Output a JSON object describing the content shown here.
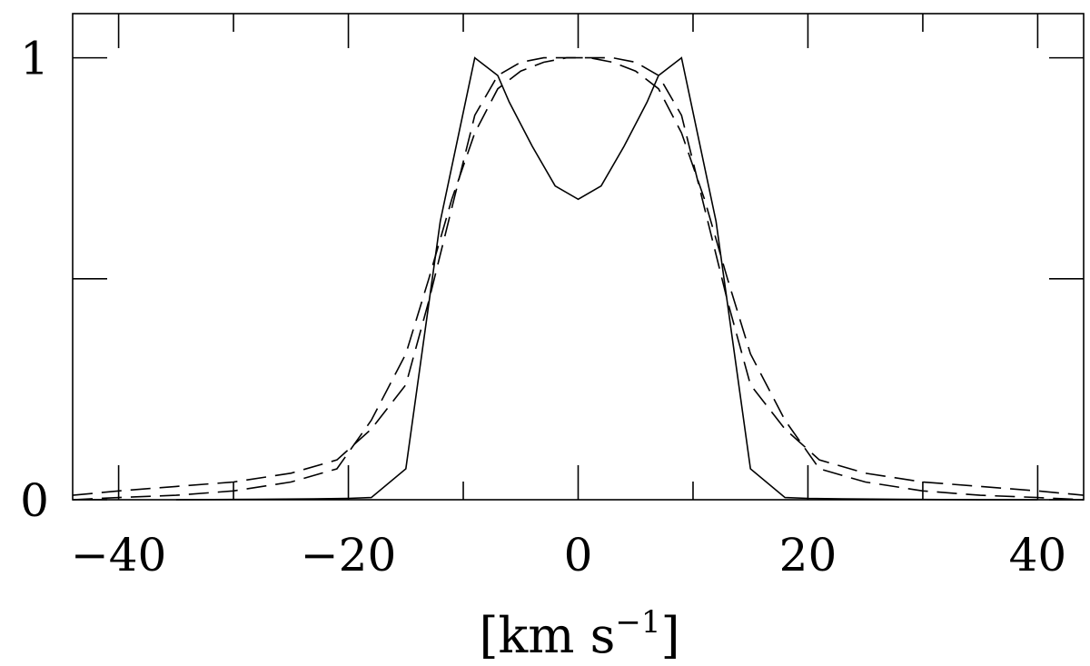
{
  "chart_data": {
    "type": "line",
    "title": "",
    "xlabel": "[km s",
    "xlabel_superscript": "−1",
    "xlabel_close": "]",
    "ylabel": "",
    "xlim": [
      -44,
      44
    ],
    "ylim": [
      0,
      1.1
    ],
    "x_ticks": [
      -40,
      -20,
      0,
      20,
      40
    ],
    "x_tick_labels": [
      "−40",
      "−20",
      "0",
      "20",
      "40"
    ],
    "x_minor_ticks": [
      -30,
      -10,
      10,
      30
    ],
    "y_ticks": [
      0,
      0.5,
      1
    ],
    "y_tick_labels": [
      "0",
      "",
      "1"
    ],
    "grid": false,
    "legend": "none",
    "series": [
      {
        "style": "solid",
        "x": [
          -35,
          -28,
          -23,
          -20,
          -18,
          -15,
          -12,
          -9,
          -7,
          -6,
          -4,
          -2,
          0,
          2,
          4,
          6,
          7,
          9,
          12,
          15,
          18,
          20,
          23,
          28,
          35,
          40
        ],
        "y": [
          0.0,
          0.001,
          0.002,
          0.003,
          0.005,
          0.07,
          0.63,
          1.0,
          0.96,
          0.9,
          0.8,
          0.71,
          0.68,
          0.71,
          0.8,
          0.9,
          0.96,
          1.0,
          0.63,
          0.07,
          0.005,
          0.003,
          0.002,
          0.001,
          0.0,
          0.0
        ]
      },
      {
        "style": "dash",
        "x": [
          -44,
          -40,
          -35,
          -30,
          -25,
          -21,
          -18,
          -15,
          -13,
          -11,
          -9,
          -7,
          -5,
          -3,
          -1,
          0,
          1,
          3,
          5,
          7,
          9,
          11,
          13,
          15,
          18,
          21,
          25,
          30,
          35,
          40,
          44
        ],
        "y": [
          0.01,
          0.02,
          0.03,
          0.04,
          0.06,
          0.09,
          0.16,
          0.26,
          0.45,
          0.66,
          0.87,
          0.96,
          0.99,
          1.0,
          1.0,
          1.0,
          1.0,
          1.0,
          0.99,
          0.96,
          0.87,
          0.66,
          0.45,
          0.26,
          0.16,
          0.09,
          0.06,
          0.04,
          0.03,
          0.02,
          0.01
        ]
      },
      {
        "style": "dash",
        "x": [
          -44,
          -40,
          -35,
          -30,
          -25,
          -21,
          -18,
          -15,
          -13,
          -11,
          -9,
          -7,
          -5,
          -3,
          -1,
          0,
          1,
          3,
          5,
          7,
          9,
          11,
          13,
          15,
          18,
          21,
          25,
          30,
          35,
          40,
          44
        ],
        "y": [
          0.0,
          0.005,
          0.01,
          0.02,
          0.04,
          0.07,
          0.18,
          0.33,
          0.5,
          0.68,
          0.83,
          0.93,
          0.97,
          0.99,
          1.0,
          1.0,
          1.0,
          0.99,
          0.97,
          0.93,
          0.83,
          0.68,
          0.5,
          0.33,
          0.18,
          0.07,
          0.04,
          0.02,
          0.01,
          0.005,
          0.0
        ]
      }
    ]
  }
}
